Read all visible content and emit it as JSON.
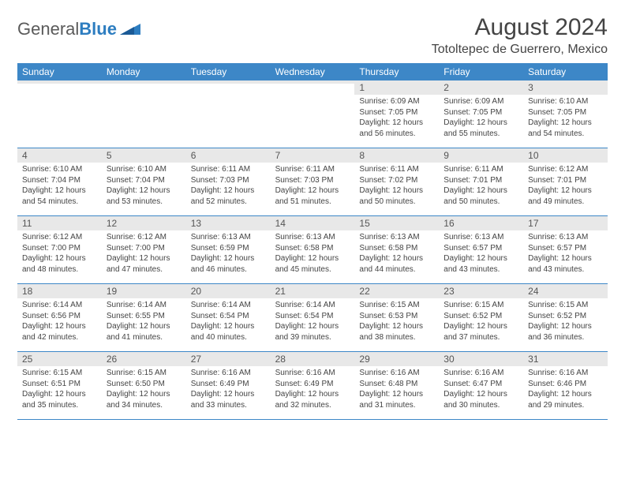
{
  "logo": {
    "text_general": "General",
    "text_blue": "Blue"
  },
  "title": "August 2024",
  "location": "Totoltepec de Guerrero, Mexico",
  "colors": {
    "header_bg": "#3d87c7",
    "header_text": "#ffffff",
    "daynum_bg": "#e8e8e8",
    "border": "#3d87c7",
    "body_bg": "#ffffff",
    "text": "#444444"
  },
  "day_names": [
    "Sunday",
    "Monday",
    "Tuesday",
    "Wednesday",
    "Thursday",
    "Friday",
    "Saturday"
  ],
  "weeks": [
    [
      {
        "n": "",
        "sr": "",
        "ss": "",
        "dl": ""
      },
      {
        "n": "",
        "sr": "",
        "ss": "",
        "dl": ""
      },
      {
        "n": "",
        "sr": "",
        "ss": "",
        "dl": ""
      },
      {
        "n": "",
        "sr": "",
        "ss": "",
        "dl": ""
      },
      {
        "n": "1",
        "sr": "Sunrise: 6:09 AM",
        "ss": "Sunset: 7:05 PM",
        "dl": "Daylight: 12 hours and 56 minutes."
      },
      {
        "n": "2",
        "sr": "Sunrise: 6:09 AM",
        "ss": "Sunset: 7:05 PM",
        "dl": "Daylight: 12 hours and 55 minutes."
      },
      {
        "n": "3",
        "sr": "Sunrise: 6:10 AM",
        "ss": "Sunset: 7:05 PM",
        "dl": "Daylight: 12 hours and 54 minutes."
      }
    ],
    [
      {
        "n": "4",
        "sr": "Sunrise: 6:10 AM",
        "ss": "Sunset: 7:04 PM",
        "dl": "Daylight: 12 hours and 54 minutes."
      },
      {
        "n": "5",
        "sr": "Sunrise: 6:10 AM",
        "ss": "Sunset: 7:04 PM",
        "dl": "Daylight: 12 hours and 53 minutes."
      },
      {
        "n": "6",
        "sr": "Sunrise: 6:11 AM",
        "ss": "Sunset: 7:03 PM",
        "dl": "Daylight: 12 hours and 52 minutes."
      },
      {
        "n": "7",
        "sr": "Sunrise: 6:11 AM",
        "ss": "Sunset: 7:03 PM",
        "dl": "Daylight: 12 hours and 51 minutes."
      },
      {
        "n": "8",
        "sr": "Sunrise: 6:11 AM",
        "ss": "Sunset: 7:02 PM",
        "dl": "Daylight: 12 hours and 50 minutes."
      },
      {
        "n": "9",
        "sr": "Sunrise: 6:11 AM",
        "ss": "Sunset: 7:01 PM",
        "dl": "Daylight: 12 hours and 50 minutes."
      },
      {
        "n": "10",
        "sr": "Sunrise: 6:12 AM",
        "ss": "Sunset: 7:01 PM",
        "dl": "Daylight: 12 hours and 49 minutes."
      }
    ],
    [
      {
        "n": "11",
        "sr": "Sunrise: 6:12 AM",
        "ss": "Sunset: 7:00 PM",
        "dl": "Daylight: 12 hours and 48 minutes."
      },
      {
        "n": "12",
        "sr": "Sunrise: 6:12 AM",
        "ss": "Sunset: 7:00 PM",
        "dl": "Daylight: 12 hours and 47 minutes."
      },
      {
        "n": "13",
        "sr": "Sunrise: 6:13 AM",
        "ss": "Sunset: 6:59 PM",
        "dl": "Daylight: 12 hours and 46 minutes."
      },
      {
        "n": "14",
        "sr": "Sunrise: 6:13 AM",
        "ss": "Sunset: 6:58 PM",
        "dl": "Daylight: 12 hours and 45 minutes."
      },
      {
        "n": "15",
        "sr": "Sunrise: 6:13 AM",
        "ss": "Sunset: 6:58 PM",
        "dl": "Daylight: 12 hours and 44 minutes."
      },
      {
        "n": "16",
        "sr": "Sunrise: 6:13 AM",
        "ss": "Sunset: 6:57 PM",
        "dl": "Daylight: 12 hours and 43 minutes."
      },
      {
        "n": "17",
        "sr": "Sunrise: 6:13 AM",
        "ss": "Sunset: 6:57 PM",
        "dl": "Daylight: 12 hours and 43 minutes."
      }
    ],
    [
      {
        "n": "18",
        "sr": "Sunrise: 6:14 AM",
        "ss": "Sunset: 6:56 PM",
        "dl": "Daylight: 12 hours and 42 minutes."
      },
      {
        "n": "19",
        "sr": "Sunrise: 6:14 AM",
        "ss": "Sunset: 6:55 PM",
        "dl": "Daylight: 12 hours and 41 minutes."
      },
      {
        "n": "20",
        "sr": "Sunrise: 6:14 AM",
        "ss": "Sunset: 6:54 PM",
        "dl": "Daylight: 12 hours and 40 minutes."
      },
      {
        "n": "21",
        "sr": "Sunrise: 6:14 AM",
        "ss": "Sunset: 6:54 PM",
        "dl": "Daylight: 12 hours and 39 minutes."
      },
      {
        "n": "22",
        "sr": "Sunrise: 6:15 AM",
        "ss": "Sunset: 6:53 PM",
        "dl": "Daylight: 12 hours and 38 minutes."
      },
      {
        "n": "23",
        "sr": "Sunrise: 6:15 AM",
        "ss": "Sunset: 6:52 PM",
        "dl": "Daylight: 12 hours and 37 minutes."
      },
      {
        "n": "24",
        "sr": "Sunrise: 6:15 AM",
        "ss": "Sunset: 6:52 PM",
        "dl": "Daylight: 12 hours and 36 minutes."
      }
    ],
    [
      {
        "n": "25",
        "sr": "Sunrise: 6:15 AM",
        "ss": "Sunset: 6:51 PM",
        "dl": "Daylight: 12 hours and 35 minutes."
      },
      {
        "n": "26",
        "sr": "Sunrise: 6:15 AM",
        "ss": "Sunset: 6:50 PM",
        "dl": "Daylight: 12 hours and 34 minutes."
      },
      {
        "n": "27",
        "sr": "Sunrise: 6:16 AM",
        "ss": "Sunset: 6:49 PM",
        "dl": "Daylight: 12 hours and 33 minutes."
      },
      {
        "n": "28",
        "sr": "Sunrise: 6:16 AM",
        "ss": "Sunset: 6:49 PM",
        "dl": "Daylight: 12 hours and 32 minutes."
      },
      {
        "n": "29",
        "sr": "Sunrise: 6:16 AM",
        "ss": "Sunset: 6:48 PM",
        "dl": "Daylight: 12 hours and 31 minutes."
      },
      {
        "n": "30",
        "sr": "Sunrise: 6:16 AM",
        "ss": "Sunset: 6:47 PM",
        "dl": "Daylight: 12 hours and 30 minutes."
      },
      {
        "n": "31",
        "sr": "Sunrise: 6:16 AM",
        "ss": "Sunset: 6:46 PM",
        "dl": "Daylight: 12 hours and 29 minutes."
      }
    ]
  ]
}
